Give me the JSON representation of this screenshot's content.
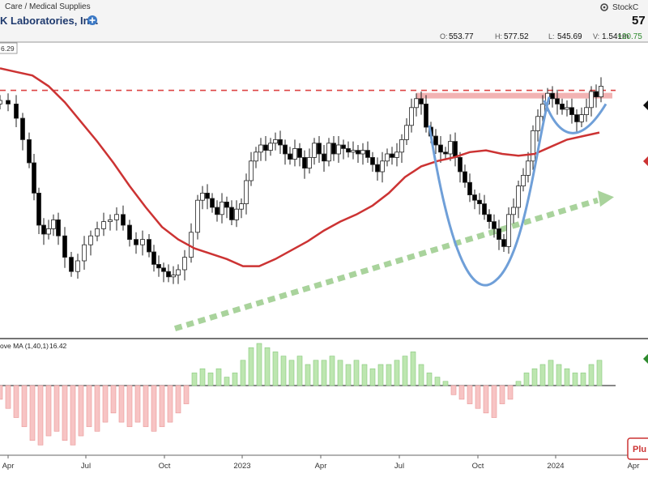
{
  "header": {
    "sector": "Care / Medical Supplies",
    "company": "K Laboratories, Inc.",
    "price": "57",
    "brand": "StockC",
    "ohlc": [
      {
        "label": "O:",
        "value": "553.77"
      },
      {
        "label": "H:",
        "value": "577.52"
      },
      {
        "label": "L:",
        "value": "545.69"
      },
      {
        "label": "V:",
        "value": "1.541m"
      }
    ],
    "change": "+20.75",
    "legend_value": "6.29",
    "plus_icon": "plus-circle-icon",
    "gear_icon": "gear-icon",
    "search_icon": "search-icon"
  },
  "lower_panel": {
    "label": "ove MA (1,40,1)",
    "value": "16.42"
  },
  "plug_button": "Plu",
  "colors": {
    "up_candle": "#ffffff",
    "down_candle": "#000000",
    "ma_line": "#cc3333",
    "resistance": "#dd4444",
    "cup_handle": "#6f9fd8",
    "trend_arrow": "#a9d39c",
    "pos_bar": "#bde6b0",
    "neg_bar": "#f7c4c4"
  },
  "chart_data": [
    {
      "type": "candlestick",
      "title": "K Laboratories, Inc.",
      "x_tick_labels": [
        "Apr",
        "Jul",
        "Oct",
        "2023",
        "Apr",
        "Jul",
        "Oct",
        "2024",
        "Apr"
      ],
      "ylim": [
        440,
        600
      ],
      "resistance_level": 577,
      "ma_period": 50,
      "closes": [
        {
          "t": 0,
          "y": 570
        },
        {
          "t": 10,
          "y": 568
        },
        {
          "t": 20,
          "y": 560
        },
        {
          "t": 28,
          "y": 548
        },
        {
          "t": 36,
          "y": 535
        },
        {
          "t": 42,
          "y": 518
        },
        {
          "t": 48,
          "y": 500
        },
        {
          "t": 54,
          "y": 495
        },
        {
          "t": 60,
          "y": 498
        },
        {
          "t": 66,
          "y": 503
        },
        {
          "t": 72,
          "y": 494
        },
        {
          "t": 80,
          "y": 482
        },
        {
          "t": 88,
          "y": 474
        },
        {
          "t": 96,
          "y": 480
        },
        {
          "t": 104,
          "y": 489
        },
        {
          "t": 112,
          "y": 494
        },
        {
          "t": 120,
          "y": 498
        },
        {
          "t": 128,
          "y": 502
        },
        {
          "t": 136,
          "y": 503
        },
        {
          "t": 144,
          "y": 506
        },
        {
          "t": 152,
          "y": 500
        },
        {
          "t": 160,
          "y": 492
        },
        {
          "t": 168,
          "y": 489
        },
        {
          "t": 176,
          "y": 492
        },
        {
          "t": 184,
          "y": 485
        },
        {
          "t": 190,
          "y": 478
        },
        {
          "t": 196,
          "y": 476
        },
        {
          "t": 202,
          "y": 474
        },
        {
          "t": 208,
          "y": 471
        },
        {
          "t": 214,
          "y": 472
        },
        {
          "t": 220,
          "y": 475
        },
        {
          "t": 228,
          "y": 482
        },
        {
          "t": 236,
          "y": 496
        },
        {
          "t": 244,
          "y": 514
        },
        {
          "t": 250,
          "y": 518
        },
        {
          "t": 256,
          "y": 515
        },
        {
          "t": 262,
          "y": 510
        },
        {
          "t": 268,
          "y": 506
        },
        {
          "t": 274,
          "y": 513
        },
        {
          "t": 280,
          "y": 510
        },
        {
          "t": 286,
          "y": 503
        },
        {
          "t": 292,
          "y": 509
        },
        {
          "t": 298,
          "y": 512
        },
        {
          "t": 304,
          "y": 525
        },
        {
          "t": 310,
          "y": 536
        },
        {
          "t": 316,
          "y": 541
        },
        {
          "t": 322,
          "y": 545
        },
        {
          "t": 328,
          "y": 542
        },
        {
          "t": 334,
          "y": 546
        },
        {
          "t": 340,
          "y": 548
        },
        {
          "t": 346,
          "y": 545
        },
        {
          "t": 352,
          "y": 540
        },
        {
          "t": 358,
          "y": 537
        },
        {
          "t": 364,
          "y": 543
        },
        {
          "t": 370,
          "y": 538
        },
        {
          "t": 376,
          "y": 532
        },
        {
          "t": 382,
          "y": 538
        },
        {
          "t": 388,
          "y": 546
        },
        {
          "t": 394,
          "y": 540
        },
        {
          "t": 400,
          "y": 536
        },
        {
          "t": 406,
          "y": 546
        },
        {
          "t": 412,
          "y": 540
        },
        {
          "t": 418,
          "y": 545
        },
        {
          "t": 424,
          "y": 543
        },
        {
          "t": 430,
          "y": 541
        },
        {
          "t": 436,
          "y": 542
        },
        {
          "t": 442,
          "y": 540
        },
        {
          "t": 448,
          "y": 542
        },
        {
          "t": 454,
          "y": 538
        },
        {
          "t": 460,
          "y": 534
        },
        {
          "t": 466,
          "y": 530
        },
        {
          "t": 472,
          "y": 536
        },
        {
          "t": 478,
          "y": 540
        },
        {
          "t": 484,
          "y": 538
        },
        {
          "t": 490,
          "y": 541
        },
        {
          "t": 496,
          "y": 548
        },
        {
          "t": 502,
          "y": 556
        },
        {
          "t": 508,
          "y": 566
        },
        {
          "t": 514,
          "y": 571
        },
        {
          "t": 520,
          "y": 568
        },
        {
          "t": 526,
          "y": 555
        },
        {
          "t": 532,
          "y": 550
        },
        {
          "t": 538,
          "y": 545
        },
        {
          "t": 544,
          "y": 541
        },
        {
          "t": 550,
          "y": 540
        },
        {
          "t": 556,
          "y": 547
        },
        {
          "t": 562,
          "y": 538
        },
        {
          "t": 568,
          "y": 530
        },
        {
          "t": 574,
          "y": 524
        },
        {
          "t": 580,
          "y": 517
        },
        {
          "t": 586,
          "y": 514
        },
        {
          "t": 592,
          "y": 512
        },
        {
          "t": 598,
          "y": 506
        },
        {
          "t": 604,
          "y": 502
        },
        {
          "t": 610,
          "y": 498
        },
        {
          "t": 616,
          "y": 492
        },
        {
          "t": 622,
          "y": 488
        },
        {
          "t": 628,
          "y": 506
        },
        {
          "t": 634,
          "y": 510
        },
        {
          "t": 640,
          "y": 522
        },
        {
          "t": 646,
          "y": 528
        },
        {
          "t": 652,
          "y": 536
        },
        {
          "t": 658,
          "y": 553
        },
        {
          "t": 664,
          "y": 561
        },
        {
          "t": 670,
          "y": 568
        },
        {
          "t": 676,
          "y": 574
        },
        {
          "t": 682,
          "y": 571
        },
        {
          "t": 688,
          "y": 568
        },
        {
          "t": 694,
          "y": 565
        },
        {
          "t": 700,
          "y": 566
        },
        {
          "t": 706,
          "y": 562
        },
        {
          "t": 712,
          "y": 558
        },
        {
          "t": 718,
          "y": 562
        },
        {
          "t": 724,
          "y": 566
        },
        {
          "t": 730,
          "y": 575
        },
        {
          "t": 736,
          "y": 572
        },
        {
          "t": 742,
          "y": 578
        }
      ],
      "ma_points": [
        {
          "t": 0,
          "y": 588
        },
        {
          "t": 20,
          "y": 586
        },
        {
          "t": 40,
          "y": 584
        },
        {
          "t": 60,
          "y": 578
        },
        {
          "t": 80,
          "y": 569
        },
        {
          "t": 100,
          "y": 558
        },
        {
          "t": 120,
          "y": 547
        },
        {
          "t": 140,
          "y": 535
        },
        {
          "t": 160,
          "y": 522
        },
        {
          "t": 180,
          "y": 510
        },
        {
          "t": 200,
          "y": 499
        },
        {
          "t": 220,
          "y": 492
        },
        {
          "t": 240,
          "y": 487
        },
        {
          "t": 260,
          "y": 484
        },
        {
          "t": 280,
          "y": 481
        },
        {
          "t": 300,
          "y": 477
        },
        {
          "t": 320,
          "y": 477
        },
        {
          "t": 340,
          "y": 481
        },
        {
          "t": 360,
          "y": 486
        },
        {
          "t": 380,
          "y": 491
        },
        {
          "t": 400,
          "y": 497
        },
        {
          "t": 420,
          "y": 502
        },
        {
          "t": 440,
          "y": 506
        },
        {
          "t": 460,
          "y": 511
        },
        {
          "t": 480,
          "y": 518
        },
        {
          "t": 500,
          "y": 527
        },
        {
          "t": 520,
          "y": 533
        },
        {
          "t": 540,
          "y": 536
        },
        {
          "t": 560,
          "y": 538
        },
        {
          "t": 580,
          "y": 541
        },
        {
          "t": 600,
          "y": 542
        },
        {
          "t": 620,
          "y": 540
        },
        {
          "t": 640,
          "y": 539
        },
        {
          "t": 660,
          "y": 540
        },
        {
          "t": 680,
          "y": 544
        },
        {
          "t": 700,
          "y": 548
        },
        {
          "t": 720,
          "y": 550
        },
        {
          "t": 740,
          "y": 552
        }
      ]
    },
    {
      "type": "bar",
      "title": "ove MA (1,40,1)",
      "ylim": [
        -14,
        10
      ],
      "values": [
        {
          "t": 0,
          "v": -3
        },
        {
          "t": 10,
          "v": -5
        },
        {
          "t": 20,
          "v": -7
        },
        {
          "t": 30,
          "v": -9
        },
        {
          "t": 40,
          "v": -12
        },
        {
          "t": 50,
          "v": -13
        },
        {
          "t": 60,
          "v": -11
        },
        {
          "t": 70,
          "v": -10
        },
        {
          "t": 80,
          "v": -12
        },
        {
          "t": 90,
          "v": -13
        },
        {
          "t": 100,
          "v": -11
        },
        {
          "t": 110,
          "v": -9
        },
        {
          "t": 120,
          "v": -10
        },
        {
          "t": 130,
          "v": -8
        },
        {
          "t": 140,
          "v": -6
        },
        {
          "t": 150,
          "v": -8
        },
        {
          "t": 160,
          "v": -9
        },
        {
          "t": 170,
          "v": -8
        },
        {
          "t": 180,
          "v": -9
        },
        {
          "t": 190,
          "v": -10
        },
        {
          "t": 200,
          "v": -9
        },
        {
          "t": 210,
          "v": -8
        },
        {
          "t": 220,
          "v": -6
        },
        {
          "t": 230,
          "v": -4
        },
        {
          "t": 240,
          "v": 3
        },
        {
          "t": 250,
          "v": 4
        },
        {
          "t": 260,
          "v": 3
        },
        {
          "t": 270,
          "v": 4
        },
        {
          "t": 280,
          "v": 2
        },
        {
          "t": 290,
          "v": 3
        },
        {
          "t": 300,
          "v": 6
        },
        {
          "t": 310,
          "v": 9
        },
        {
          "t": 320,
          "v": 10
        },
        {
          "t": 330,
          "v": 9
        },
        {
          "t": 340,
          "v": 8
        },
        {
          "t": 350,
          "v": 7
        },
        {
          "t": 360,
          "v": 6
        },
        {
          "t": 370,
          "v": 7
        },
        {
          "t": 380,
          "v": 5
        },
        {
          "t": 390,
          "v": 6
        },
        {
          "t": 400,
          "v": 6
        },
        {
          "t": 410,
          "v": 7
        },
        {
          "t": 420,
          "v": 6
        },
        {
          "t": 430,
          "v": 5
        },
        {
          "t": 440,
          "v": 6
        },
        {
          "t": 450,
          "v": 5
        },
        {
          "t": 460,
          "v": 4
        },
        {
          "t": 470,
          "v": 5
        },
        {
          "t": 480,
          "v": 5
        },
        {
          "t": 490,
          "v": 6
        },
        {
          "t": 500,
          "v": 7
        },
        {
          "t": 510,
          "v": 8
        },
        {
          "t": 520,
          "v": 5
        },
        {
          "t": 530,
          "v": 3
        },
        {
          "t": 540,
          "v": 2
        },
        {
          "t": 550,
          "v": 1
        },
        {
          "t": 560,
          "v": -2
        },
        {
          "t": 570,
          "v": -3
        },
        {
          "t": 580,
          "v": -4
        },
        {
          "t": 590,
          "v": -5
        },
        {
          "t": 600,
          "v": -6
        },
        {
          "t": 610,
          "v": -7
        },
        {
          "t": 620,
          "v": -4
        },
        {
          "t": 630,
          "v": -3
        },
        {
          "t": 640,
          "v": 1
        },
        {
          "t": 650,
          "v": 3
        },
        {
          "t": 660,
          "v": 4
        },
        {
          "t": 670,
          "v": 5
        },
        {
          "t": 680,
          "v": 6
        },
        {
          "t": 690,
          "v": 5
        },
        {
          "t": 700,
          "v": 4
        },
        {
          "t": 710,
          "v": 3
        },
        {
          "t": 720,
          "v": 3
        },
        {
          "t": 730,
          "v": 5
        },
        {
          "t": 740,
          "v": 6
        }
      ]
    }
  ]
}
